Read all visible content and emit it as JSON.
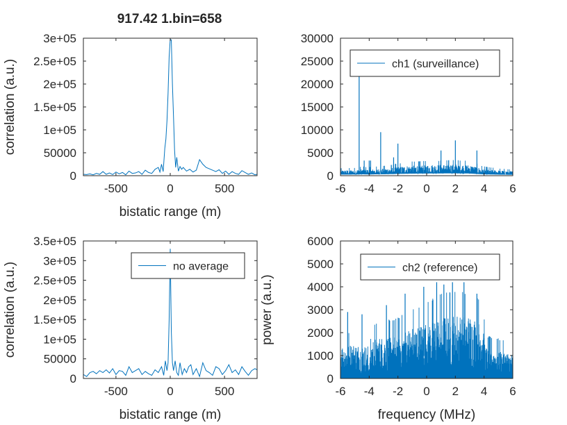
{
  "figure_title": "917.42 1.bin=658",
  "colors": {
    "series": "#0072BD",
    "axis": "#262626"
  },
  "chart_data": [
    {
      "type": "line",
      "panel": "top-left",
      "title": "917.42 1.bin=658",
      "xlabel": "bistatic range (m)",
      "ylabel": "correlation (a.u.)",
      "xlim": [
        -800,
        800
      ],
      "ylim": [
        0,
        300000
      ],
      "xticks": [
        -500,
        0,
        500
      ],
      "xtick_labels": [
        "-500",
        "0",
        "500"
      ],
      "yticks": [
        0,
        50000,
        100000,
        150000,
        200000,
        250000,
        300000
      ],
      "ytick_labels": [
        "0",
        "50000",
        "1e+05",
        "1.5e+05",
        "2e+05",
        "2.5e+05",
        "3e+05"
      ],
      "legend": null,
      "series": [
        {
          "x": [
            -800,
            -770,
            -740,
            -710,
            -680,
            -650,
            -620,
            -590,
            -560,
            -530,
            -500,
            -470,
            -440,
            -410,
            -380,
            -350,
            -320,
            -290,
            -260,
            -230,
            -200,
            -170,
            -140,
            -110,
            -95,
            -80,
            -65,
            -50,
            -40,
            -30,
            -20,
            -10,
            0,
            10,
            20,
            30,
            40,
            50,
            60,
            75,
            90,
            105,
            120,
            150,
            180,
            210,
            240,
            270,
            300,
            330,
            360,
            390,
            420,
            450,
            480,
            510,
            540,
            570,
            600,
            630,
            660,
            690,
            720,
            750,
            780,
            800
          ],
          "y": [
            3000,
            2500,
            4000,
            2000,
            5000,
            3000,
            9000,
            3000,
            6000,
            2500,
            8000,
            4000,
            7000,
            2000,
            10000,
            5000,
            6000,
            9000,
            3000,
            12000,
            7000,
            5000,
            14000,
            18000,
            8000,
            25000,
            9000,
            60000,
            80000,
            120000,
            180000,
            260000,
            298000,
            296000,
            200000,
            130000,
            55000,
            18000,
            40000,
            10000,
            20000,
            14000,
            18000,
            10000,
            14000,
            8000,
            12000,
            35000,
            25000,
            18000,
            15000,
            12000,
            9000,
            13000,
            5000,
            10000,
            3000,
            9000,
            5000,
            3000,
            11000,
            7000,
            3000,
            6000,
            2000,
            3000
          ]
        }
      ]
    },
    {
      "type": "line",
      "panel": "top-right",
      "title": "",
      "xlabel": "",
      "ylabel": "",
      "xlim": [
        -6,
        6
      ],
      "ylim": [
        0,
        30000
      ],
      "xticks": [
        -6,
        -4,
        -2,
        0,
        2,
        4,
        6
      ],
      "xtick_labels": [
        "-6",
        "-4",
        "-2",
        "0",
        "2",
        "4",
        "6"
      ],
      "yticks": [
        0,
        5000,
        10000,
        15000,
        20000,
        25000,
        30000
      ],
      "ytick_labels": [
        "0",
        "5000",
        "10000",
        "15000",
        "20000",
        "25000",
        "30000"
      ],
      "legend": {
        "position": "top",
        "entries": [
          "ch1 (surveillance)"
        ]
      },
      "series": [
        {
          "name": "ch1 (surveillance)",
          "envelope": {
            "x": [
              -6,
              -5,
              -4.5,
              -4,
              -3,
              -2,
              -1,
              0,
              1,
              2,
              3,
              4,
              5,
              6
            ],
            "y": [
              1200,
              1300,
              1500,
              1400,
              1600,
              2000,
              2300,
              2400,
              2500,
              2600,
              2400,
              1500,
              1200,
              1000
            ]
          },
          "peaks": {
            "x": [
              -4.7,
              -4.35,
              -4.0,
              -3.9,
              -3.2,
              -2.0,
              1.0,
              2.0,
              3.5,
              -2.3
            ],
            "y": [
              22500,
              3300,
              3300,
              3300,
              9500,
              7000,
              5500,
              7700,
              5500,
              4000
            ]
          }
        }
      ]
    },
    {
      "type": "line",
      "panel": "bottom-left",
      "title": "",
      "xlabel": "bistatic range (m)",
      "ylabel": "correlation (a.u.)",
      "xlim": [
        -800,
        800
      ],
      "ylim": [
        0,
        350000
      ],
      "xticks": [
        -500,
        0,
        500
      ],
      "xtick_labels": [
        "-500",
        "0",
        "500"
      ],
      "yticks": [
        0,
        50000,
        100000,
        150000,
        200000,
        250000,
        300000,
        350000
      ],
      "ytick_labels": [
        "0",
        "50000",
        "1e+05",
        "1.5e+05",
        "2e+05",
        "2.5e+05",
        "3e+05",
        "3.5e+05"
      ],
      "legend": {
        "position": "top-right",
        "entries": [
          "no average"
        ]
      },
      "series": [
        {
          "name": "no average",
          "x": [
            -800,
            -770,
            -740,
            -710,
            -680,
            -650,
            -620,
            -590,
            -560,
            -530,
            -500,
            -470,
            -440,
            -410,
            -380,
            -350,
            -320,
            -290,
            -260,
            -230,
            -200,
            -170,
            -140,
            -110,
            -80,
            -60,
            -45,
            -30,
            -20,
            -10,
            0,
            10,
            20,
            30,
            45,
            60,
            75,
            90,
            110,
            130,
            150,
            170,
            190,
            210,
            240,
            270,
            300,
            330,
            360,
            390,
            420,
            450,
            480,
            510,
            540,
            570,
            600,
            630,
            660,
            690,
            720,
            750,
            780,
            800
          ],
          "y": [
            10000,
            5000,
            15000,
            18000,
            12000,
            20000,
            15000,
            22000,
            14000,
            25000,
            10000,
            20000,
            18000,
            8000,
            30000,
            15000,
            20000,
            25000,
            10000,
            18000,
            12000,
            8000,
            22000,
            15000,
            30000,
            8000,
            45000,
            20000,
            40000,
            150000,
            330000,
            120000,
            40000,
            20000,
            45000,
            15000,
            8000,
            40000,
            10000,
            25000,
            15000,
            30000,
            35000,
            10000,
            25000,
            5000,
            40000,
            20000,
            15000,
            8000,
            30000,
            25000,
            10000,
            20000,
            35000,
            15000,
            22000,
            10000,
            30000,
            18000,
            8000,
            20000,
            25000,
            22000
          ]
        }
      ]
    },
    {
      "type": "area",
      "panel": "bottom-right",
      "title": "",
      "xlabel": "frequency (MHz)",
      "ylabel": "power (a.u.)",
      "xlim": [
        -6,
        6
      ],
      "ylim": [
        0,
        6000
      ],
      "xticks": [
        -6,
        -4,
        -2,
        0,
        2,
        4,
        6
      ],
      "xtick_labels": [
        "-6",
        "-4",
        "-2",
        "0",
        "2",
        "4",
        "6"
      ],
      "yticks": [
        0,
        1000,
        2000,
        3000,
        4000,
        5000,
        6000
      ],
      "ytick_labels": [
        "0",
        "1000",
        "2000",
        "3000",
        "4000",
        "5000",
        "6000"
      ],
      "legend": {
        "position": "top",
        "entries": [
          "ch2 (reference)"
        ]
      },
      "series": [
        {
          "name": "ch2 (reference)",
          "envelope": {
            "x": [
              -6,
              -5,
              -4.2,
              -4.0,
              -3.8,
              -3.0,
              -2.0,
              -1.0,
              0,
              1,
              2,
              3,
              3.9,
              4.1,
              5,
              6
            ],
            "y": [
              1500,
              1550,
              1450,
              700,
              1800,
              1850,
              2000,
              2300,
              2500,
              2800,
              2900,
              2800,
              2600,
              1400,
              1300,
              1100
            ]
          },
          "peaks": {
            "x": [
              -5.5,
              -4.5,
              -2.8,
              -1.5,
              -0.2,
              0.7,
              1.2,
              1.8,
              2.6,
              3.5
            ],
            "y": [
              2900,
              2800,
              3200,
              3700,
              4000,
              4200,
              4100,
              4200,
              4200,
              3700
            ]
          }
        }
      ]
    }
  ]
}
